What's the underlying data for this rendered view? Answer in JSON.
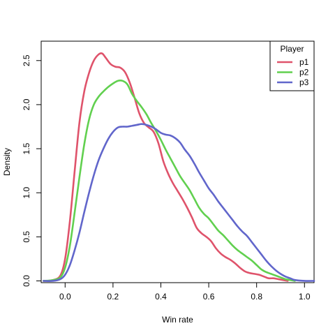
{
  "chart_data": {
    "type": "line",
    "xlabel": "Win rate",
    "ylabel": "Density",
    "xlim": [
      -0.1,
      1.04
    ],
    "ylim": [
      -0.02,
      2.72
    ],
    "x_ticks": [
      0.0,
      0.2,
      0.4,
      0.6,
      0.8,
      1.0
    ],
    "x_tick_labels": [
      "0.0",
      "0.2",
      "0.4",
      "0.6",
      "0.8",
      "1.0"
    ],
    "y_ticks": [
      0.0,
      0.5,
      1.0,
      1.5,
      2.0,
      2.5
    ],
    "y_tick_labels": [
      "0.0",
      "0.5",
      "1.0",
      "1.5",
      "2.0",
      "2.5"
    ],
    "grid": false,
    "legend": {
      "title": "Player",
      "position": "top-right"
    },
    "series": [
      {
        "name": "p1",
        "color": "#DF536B",
        "points": [
          [
            -0.09,
            0.0
          ],
          [
            -0.05,
            0.01
          ],
          [
            -0.02,
            0.06
          ],
          [
            0.0,
            0.25
          ],
          [
            0.02,
            0.68
          ],
          [
            0.04,
            1.25
          ],
          [
            0.06,
            1.8
          ],
          [
            0.08,
            2.15
          ],
          [
            0.1,
            2.36
          ],
          [
            0.12,
            2.5
          ],
          [
            0.14,
            2.57
          ],
          [
            0.155,
            2.58
          ],
          [
            0.17,
            2.53
          ],
          [
            0.19,
            2.46
          ],
          [
            0.21,
            2.43
          ],
          [
            0.23,
            2.42
          ],
          [
            0.25,
            2.37
          ],
          [
            0.27,
            2.25
          ],
          [
            0.29,
            2.08
          ],
          [
            0.31,
            1.9
          ],
          [
            0.33,
            1.79
          ],
          [
            0.35,
            1.74
          ],
          [
            0.37,
            1.69
          ],
          [
            0.39,
            1.56
          ],
          [
            0.41,
            1.36
          ],
          [
            0.43,
            1.22
          ],
          [
            0.45,
            1.11
          ],
          [
            0.47,
            1.02
          ],
          [
            0.49,
            0.93
          ],
          [
            0.51,
            0.83
          ],
          [
            0.53,
            0.72
          ],
          [
            0.55,
            0.6
          ],
          [
            0.57,
            0.54
          ],
          [
            0.59,
            0.5
          ],
          [
            0.61,
            0.45
          ],
          [
            0.63,
            0.37
          ],
          [
            0.65,
            0.31
          ],
          [
            0.67,
            0.27
          ],
          [
            0.69,
            0.24
          ],
          [
            0.71,
            0.2
          ],
          [
            0.73,
            0.15
          ],
          [
            0.75,
            0.11
          ],
          [
            0.77,
            0.09
          ],
          [
            0.79,
            0.08
          ],
          [
            0.81,
            0.07
          ],
          [
            0.83,
            0.05
          ],
          [
            0.85,
            0.03
          ],
          [
            0.87,
            0.03
          ],
          [
            0.89,
            0.02
          ],
          [
            0.91,
            0.01
          ],
          [
            0.93,
            0.0
          ]
        ]
      },
      {
        "name": "p2",
        "color": "#61D04F",
        "points": [
          [
            -0.09,
            0.0
          ],
          [
            -0.05,
            0.01
          ],
          [
            -0.02,
            0.04
          ],
          [
            0.0,
            0.15
          ],
          [
            0.02,
            0.4
          ],
          [
            0.04,
            0.78
          ],
          [
            0.06,
            1.18
          ],
          [
            0.08,
            1.55
          ],
          [
            0.1,
            1.83
          ],
          [
            0.12,
            2.0
          ],
          [
            0.14,
            2.09
          ],
          [
            0.16,
            2.15
          ],
          [
            0.18,
            2.2
          ],
          [
            0.2,
            2.24
          ],
          [
            0.22,
            2.27
          ],
          [
            0.24,
            2.27
          ],
          [
            0.26,
            2.23
          ],
          [
            0.28,
            2.12
          ],
          [
            0.3,
            2.04
          ],
          [
            0.32,
            1.97
          ],
          [
            0.34,
            1.89
          ],
          [
            0.36,
            1.79
          ],
          [
            0.38,
            1.7
          ],
          [
            0.4,
            1.6
          ],
          [
            0.42,
            1.49
          ],
          [
            0.44,
            1.39
          ],
          [
            0.46,
            1.29
          ],
          [
            0.48,
            1.19
          ],
          [
            0.5,
            1.11
          ],
          [
            0.52,
            1.03
          ],
          [
            0.54,
            0.93
          ],
          [
            0.56,
            0.83
          ],
          [
            0.58,
            0.76
          ],
          [
            0.6,
            0.71
          ],
          [
            0.62,
            0.64
          ],
          [
            0.64,
            0.57
          ],
          [
            0.66,
            0.52
          ],
          [
            0.68,
            0.46
          ],
          [
            0.7,
            0.4
          ],
          [
            0.72,
            0.35
          ],
          [
            0.74,
            0.31
          ],
          [
            0.76,
            0.27
          ],
          [
            0.78,
            0.23
          ],
          [
            0.8,
            0.18
          ],
          [
            0.82,
            0.13
          ],
          [
            0.84,
            0.1
          ],
          [
            0.86,
            0.08
          ],
          [
            0.88,
            0.06
          ],
          [
            0.9,
            0.04
          ],
          [
            0.92,
            0.02
          ],
          [
            0.94,
            0.01
          ],
          [
            0.96,
            0.0
          ]
        ]
      },
      {
        "name": "p3",
        "color": "#6166CB",
        "points": [
          [
            -0.09,
            0.0
          ],
          [
            -0.05,
            0.0
          ],
          [
            -0.02,
            0.02
          ],
          [
            0.0,
            0.07
          ],
          [
            0.02,
            0.18
          ],
          [
            0.04,
            0.35
          ],
          [
            0.06,
            0.55
          ],
          [
            0.08,
            0.78
          ],
          [
            0.1,
            1.0
          ],
          [
            0.12,
            1.2
          ],
          [
            0.14,
            1.37
          ],
          [
            0.16,
            1.5
          ],
          [
            0.18,
            1.61
          ],
          [
            0.2,
            1.69
          ],
          [
            0.22,
            1.74
          ],
          [
            0.24,
            1.75
          ],
          [
            0.26,
            1.75
          ],
          [
            0.28,
            1.76
          ],
          [
            0.3,
            1.77
          ],
          [
            0.32,
            1.78
          ],
          [
            0.34,
            1.77
          ],
          [
            0.36,
            1.75
          ],
          [
            0.38,
            1.72
          ],
          [
            0.4,
            1.68
          ],
          [
            0.42,
            1.66
          ],
          [
            0.44,
            1.65
          ],
          [
            0.46,
            1.62
          ],
          [
            0.48,
            1.57
          ],
          [
            0.5,
            1.49
          ],
          [
            0.52,
            1.42
          ],
          [
            0.54,
            1.33
          ],
          [
            0.56,
            1.23
          ],
          [
            0.58,
            1.14
          ],
          [
            0.6,
            1.05
          ],
          [
            0.62,
            0.98
          ],
          [
            0.64,
            0.9
          ],
          [
            0.66,
            0.83
          ],
          [
            0.68,
            0.76
          ],
          [
            0.7,
            0.69
          ],
          [
            0.72,
            0.62
          ],
          [
            0.74,
            0.56
          ],
          [
            0.76,
            0.51
          ],
          [
            0.78,
            0.44
          ],
          [
            0.8,
            0.37
          ],
          [
            0.82,
            0.3
          ],
          [
            0.84,
            0.23
          ],
          [
            0.86,
            0.17
          ],
          [
            0.88,
            0.12
          ],
          [
            0.9,
            0.08
          ],
          [
            0.92,
            0.05
          ],
          [
            0.94,
            0.03
          ],
          [
            0.96,
            0.01
          ],
          [
            1.0,
            0.0
          ],
          [
            1.04,
            0.0
          ]
        ]
      }
    ]
  }
}
